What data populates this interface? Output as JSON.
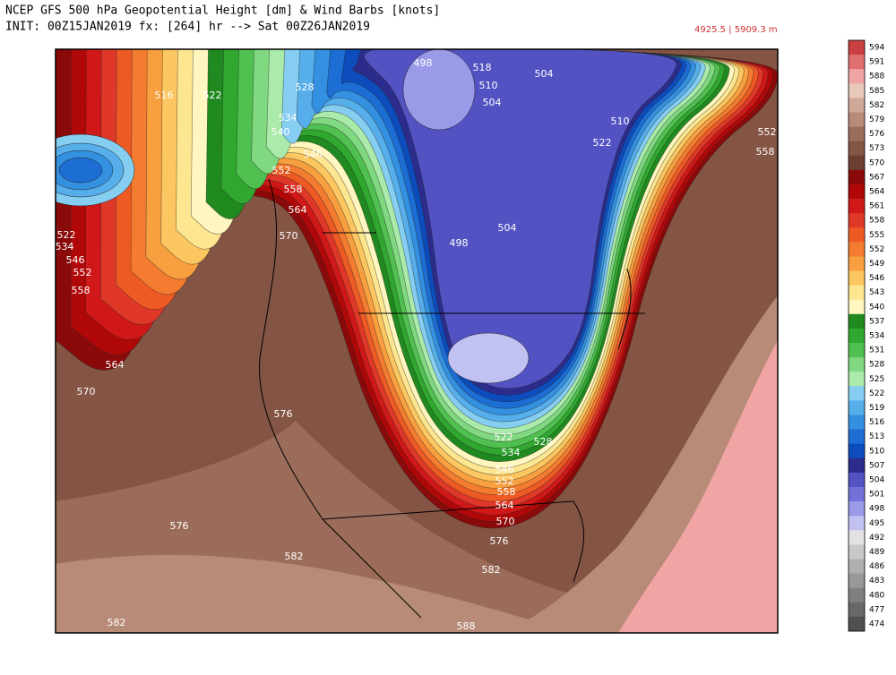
{
  "header": {
    "title": "NCEP GFS 500 hPa Geopotential Height [dm] & Wind Barbs [knots]",
    "subtitle": "INIT: 00Z15JAN2019 fx: [264] hr --> Sat 00Z26JAN2019",
    "range_info": "4925.5 | 5909.3 m"
  },
  "colorbar": {
    "levels": [
      594,
      591,
      588,
      585,
      582,
      579,
      576,
      573,
      570,
      567,
      564,
      561,
      558,
      555,
      552,
      549,
      546,
      543,
      540,
      537,
      534,
      531,
      528,
      525,
      522,
      519,
      516,
      513,
      510,
      507,
      504,
      501,
      498,
      495,
      492,
      489,
      486,
      483,
      480,
      477,
      474
    ],
    "colors": [
      "#c84040",
      "#e07070",
      "#f0a4a4",
      "#e8c8b8",
      "#d0a898",
      "#b88a78",
      "#9c6c5a",
      "#845444",
      "#6a3e30",
      "#8a0a0a",
      "#b00808",
      "#d01818",
      "#e03828",
      "#ee5a24",
      "#f47c30",
      "#f8a040",
      "#fcc660",
      "#fde690",
      "#fff6c0",
      "#208a20",
      "#30a830",
      "#50c050",
      "#80d880",
      "#aaeaaa",
      "#86cdf2",
      "#56aeea",
      "#3490e0",
      "#1c6ed4",
      "#0c4cbc",
      "#2c2c8c",
      "#5252c2",
      "#7272d8",
      "#9a9ae8",
      "#c2c2f2",
      "#e2e2e2",
      "#c8c8c8",
      "#b0b0b0",
      "#989898",
      "#808080",
      "#686868",
      "#505050"
    ]
  },
  "map": {
    "contour_labels": [
      "516",
      "522",
      "528",
      "534",
      "540",
      "546",
      "552",
      "558",
      "564",
      "570",
      "522",
      "534",
      "546",
      "552",
      "558",
      "564",
      "570",
      "576",
      "576",
      "582",
      "582",
      "498",
      "518",
      "510",
      "504",
      "504",
      "510",
      "522",
      "552",
      "558",
      "498",
      "504",
      "522",
      "528",
      "534",
      "546",
      "552",
      "558",
      "564",
      "570",
      "576",
      "582",
      "588"
    ]
  }
}
